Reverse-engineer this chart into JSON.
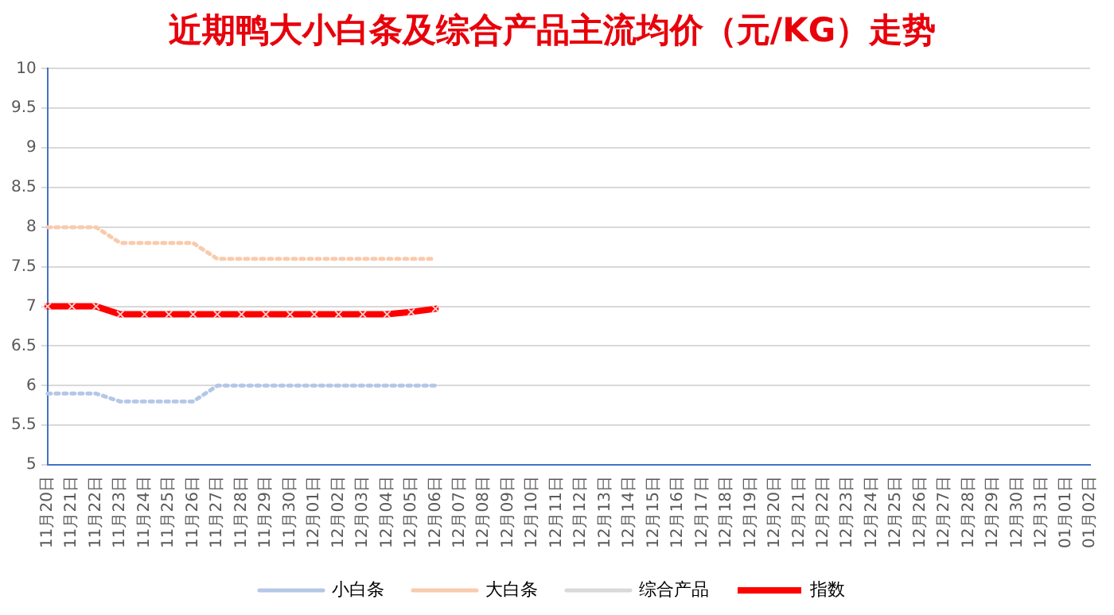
{
  "chart_data": {
    "type": "line",
    "title": "近期鸭大小白条及综合产品主流均价（元/KG）走势",
    "categories": [
      "11月20日",
      "11月21日",
      "11月22日",
      "11月23日",
      "11月24日",
      "11月25日",
      "11月26日",
      "11月27日",
      "11月28日",
      "11月29日",
      "11月30日",
      "12月01日",
      "12月02日",
      "12月03日",
      "12月04日",
      "12月05日",
      "12月06日",
      "12月07日",
      "12月08日",
      "12月09日",
      "12月10日",
      "12月11日",
      "12月12日",
      "12月13日",
      "12月14日",
      "12月15日",
      "12月16日",
      "12月17日",
      "12月18日",
      "12月19日",
      "12月20日",
      "12月21日",
      "12月22日",
      "12月23日",
      "12月24日",
      "12月25日",
      "12月26日",
      "12月27日",
      "12月28日",
      "12月29日",
      "12月30日",
      "12月31日",
      "01月01日",
      "01月02日"
    ],
    "series": [
      {
        "name": "小白条",
        "color": "#b4c7e7",
        "line_style": "dotted",
        "marker": "none",
        "values": [
          5.9,
          5.9,
          5.9,
          5.8,
          5.8,
          5.8,
          5.8,
          6.0,
          6.0,
          6.0,
          6.0,
          6.0,
          6.0,
          6.0,
          6.0,
          6.0,
          6.0,
          null,
          null,
          null,
          null,
          null,
          null,
          null,
          null,
          null,
          null,
          null,
          null,
          null,
          null,
          null,
          null,
          null,
          null,
          null,
          null,
          null,
          null,
          null,
          null,
          null,
          null,
          null
        ]
      },
      {
        "name": "大白条",
        "color": "#f8cbad",
        "line_style": "dotted",
        "marker": "none",
        "values": [
          8.0,
          8.0,
          8.0,
          7.8,
          7.8,
          7.8,
          7.8,
          7.6,
          7.6,
          7.6,
          7.6,
          7.6,
          7.6,
          7.6,
          7.6,
          7.6,
          7.6,
          null,
          null,
          null,
          null,
          null,
          null,
          null,
          null,
          null,
          null,
          null,
          null,
          null,
          null,
          null,
          null,
          null,
          null,
          null,
          null,
          null,
          null,
          null,
          null,
          null,
          null,
          null
        ]
      },
      {
        "name": "综合产品",
        "color": "#d9d9d9",
        "line_style": "dotted",
        "marker": "none",
        "values": [
          null,
          null,
          null,
          null,
          null,
          null,
          null,
          null,
          null,
          null,
          null,
          null,
          null,
          null,
          null,
          null,
          null,
          null,
          null,
          null,
          null,
          null,
          null,
          null,
          null,
          null,
          null,
          null,
          null,
          null,
          null,
          null,
          null,
          null,
          null,
          null,
          null,
          null,
          null,
          null,
          null,
          null,
          null,
          null
        ]
      },
      {
        "name": "指数",
        "color": "#ff0000",
        "line_style": "solid",
        "marker": "cross",
        "values": [
          7.0,
          7.0,
          7.0,
          6.9,
          6.9,
          6.9,
          6.9,
          6.9,
          6.9,
          6.9,
          6.9,
          6.9,
          6.9,
          6.9,
          6.9,
          6.93,
          6.97,
          null,
          null,
          null,
          null,
          null,
          null,
          null,
          null,
          null,
          null,
          null,
          null,
          null,
          null,
          null,
          null,
          null,
          null,
          null,
          null,
          null,
          null,
          null,
          null,
          null,
          null,
          null
        ]
      }
    ],
    "ylim": [
      5,
      10
    ],
    "yticks": [
      5,
      5.5,
      6,
      6.5,
      7,
      7.5,
      8,
      8.5,
      9,
      9.5,
      10
    ],
    "grid": "y",
    "legend": "bottom"
  }
}
